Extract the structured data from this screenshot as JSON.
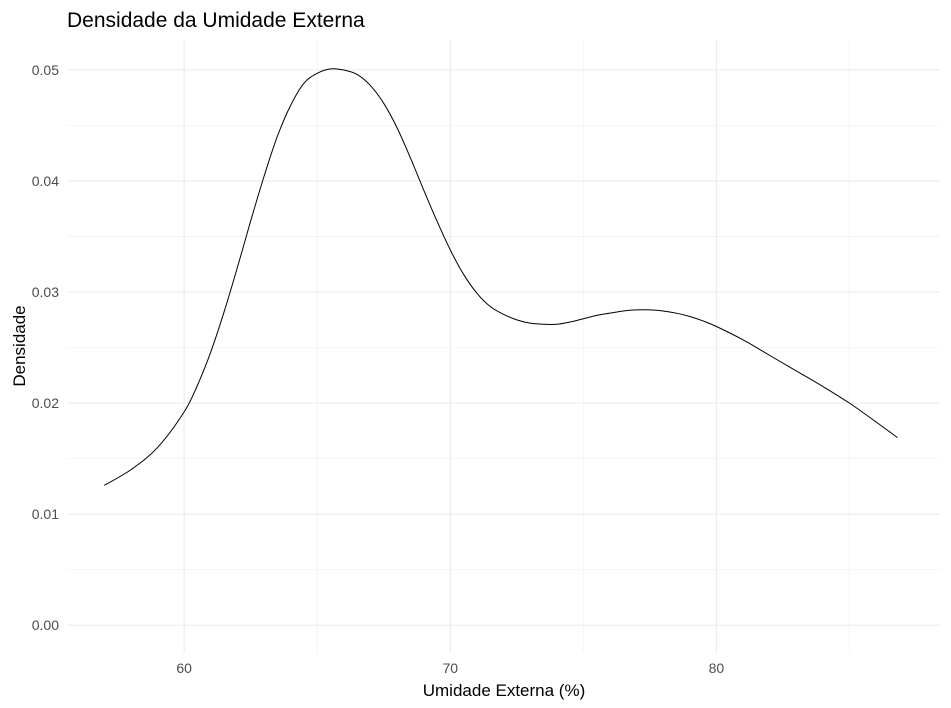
{
  "chart_data": {
    "type": "line",
    "title": "Densidade da Umidade Externa",
    "xlabel": "Umidade Externa (%)",
    "ylabel": "Densidade",
    "xlim": [
      55.6,
      88.4
    ],
    "ylim": [
      -0.0025,
      0.0527
    ],
    "x_ticks": [
      60,
      70,
      80
    ],
    "y_ticks": [
      0.0,
      0.01,
      0.02,
      0.03,
      0.04,
      0.05
    ],
    "x_tick_labels": [
      "60",
      "70",
      "80"
    ],
    "y_tick_labels": [
      "0.00",
      "0.01",
      "0.02",
      "0.03",
      "0.04",
      "0.05"
    ],
    "grid": true,
    "legend": "none",
    "series": [
      {
        "color": "#000000",
        "x": [
          57.0,
          58.0,
          59.0,
          60.0,
          60.5,
          61.0,
          61.5,
          62.0,
          62.5,
          63.0,
          63.5,
          64.0,
          64.5,
          65.0,
          65.5,
          66.0,
          66.5,
          67.0,
          67.5,
          68.0,
          68.5,
          69.0,
          69.5,
          70.0,
          70.5,
          71.0,
          71.5,
          72.0,
          72.5,
          73.0,
          73.5,
          74.0,
          74.5,
          75.0,
          75.5,
          76.0,
          76.5,
          77.0,
          77.5,
          78.0,
          78.5,
          79.0,
          79.5,
          80.0,
          81.0,
          82.0,
          83.0,
          84.0,
          85.0,
          86.0,
          86.8
        ],
        "y": [
          0.0126,
          0.014,
          0.016,
          0.0192,
          0.0216,
          0.0246,
          0.0282,
          0.0322,
          0.0364,
          0.0404,
          0.044,
          0.0468,
          0.0488,
          0.0497,
          0.0501,
          0.05,
          0.0496,
          0.0486,
          0.047,
          0.0448,
          0.0421,
          0.0392,
          0.0364,
          0.0338,
          0.0316,
          0.0299,
          0.0287,
          0.028,
          0.0275,
          0.0272,
          0.0271,
          0.0271,
          0.0273,
          0.0276,
          0.0279,
          0.0281,
          0.0283,
          0.0284,
          0.0284,
          0.0283,
          0.0281,
          0.0278,
          0.0274,
          0.0269,
          0.0257,
          0.0243,
          0.0229,
          0.0215,
          0.02,
          0.0183,
          0.0169
        ]
      }
    ]
  }
}
